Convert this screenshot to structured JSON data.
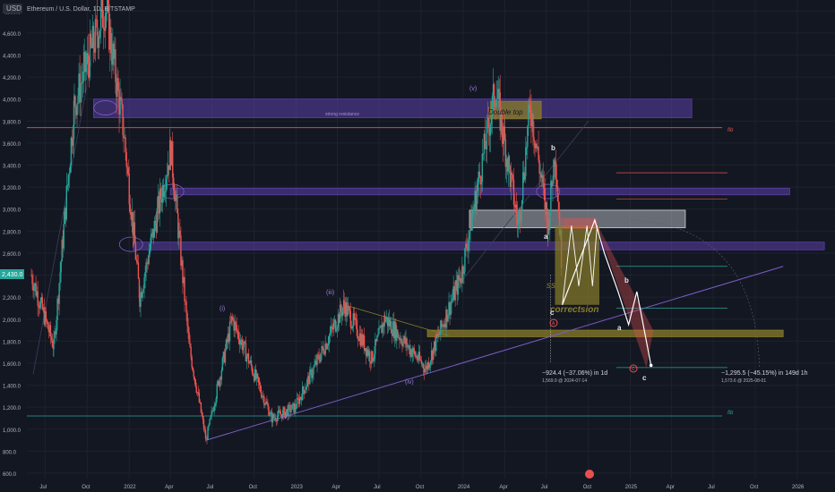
{
  "header": {
    "currency_badge": "USD",
    "title": "Ethereum / U.S. Dollar, 1D, BITSTAMP"
  },
  "price_badge": "2,430.0",
  "colors": {
    "background": "#131722",
    "zone_purple": "#5b3fa8",
    "zone_gray": "#d1d4dc",
    "zone_olive": "#8a7d2a",
    "fib_red": "#e8504f",
    "fib_teal": "#26a69a",
    "trend_purple": "#7b5cc6",
    "projection_white": "#ffffff",
    "up_candle": "#26a69a",
    "down_candle": "#ef5350"
  },
  "annotations": {
    "double_top": "Double top",
    "strong_resistance": "strong resistance",
    "correction": "correctsion",
    "swing_tag": "ss",
    "fib_top": "fib",
    "fib_bottom": "fib",
    "wave_v": "(v)",
    "wave_iii": "(iii)",
    "wave_i": "(i)",
    "wave_ii": "(ii)",
    "wave_iv": "(iv)",
    "label_a_top": "a",
    "label_b_top": "b",
    "label_c_left": "c",
    "label_b_right": "b",
    "label_a_right": "a",
    "label_c_right": "c",
    "circle_a": "A",
    "circle_c": "C",
    "measure_1_line1": "−924.4 (−37.06%) in 1d",
    "measure_1_line2": "1,569.9 @ 2024-07-14",
    "measure_2_line1": "−1,295.5 (−45.15%) in 149d 1h",
    "measure_2_line2": "1,573.6 @ 2025-08-01"
  },
  "chart_data": {
    "type": "candlestick",
    "title": "Ethereum / U.S. Dollar, 1D, BITSTAMP",
    "xlabel": "",
    "ylabel": "",
    "ylim": [
      600,
      4900
    ],
    "y_ticks": [
      "4,800.0",
      "4,600.0",
      "4,400.0",
      "4,200.0",
      "4,000.0",
      "3,800.0",
      "3,600.0",
      "3,400.0",
      "3,200.0",
      "3,000.0",
      "2,800.0",
      "2,600.0",
      "2,400.0",
      "2,200.0",
      "2,000.0",
      "1,800.0",
      "1,600.0",
      "1,400.0",
      "1,200.0",
      "1,000.0",
      "800.0",
      "600.0"
    ],
    "x_ticks": [
      "Jul",
      "Oct",
      "2022",
      "Apr",
      "Jul",
      "Oct",
      "2023",
      "Apr",
      "Jul",
      "Oct",
      "2024",
      "Apr",
      "Jul",
      "Oct",
      "2025",
      "Apr",
      "Jul",
      "Oct",
      "2026"
    ],
    "key_points": [
      {
        "date": "2021-06-01",
        "price": 2400
      },
      {
        "date": "2021-07-20",
        "price": 1750
      },
      {
        "date": "2021-09-03",
        "price": 3950
      },
      {
        "date": "2021-11-10",
        "price": 4850
      },
      {
        "date": "2021-12-20",
        "price": 3700
      },
      {
        "date": "2022-01-24",
        "price": 2200
      },
      {
        "date": "2022-04-02",
        "price": 3550
      },
      {
        "date": "2022-05-12",
        "price": 1750
      },
      {
        "date": "2022-06-18",
        "price": 900
      },
      {
        "date": "2022-08-14",
        "price": 2000
      },
      {
        "date": "2022-11-09",
        "price": 1100
      },
      {
        "date": "2022-12-30",
        "price": 1200
      },
      {
        "date": "2023-04-16",
        "price": 2130
      },
      {
        "date": "2023-06-15",
        "price": 1640
      },
      {
        "date": "2023-07-14",
        "price": 2010
      },
      {
        "date": "2023-10-12",
        "price": 1550
      },
      {
        "date": "2023-12-28",
        "price": 2400
      },
      {
        "date": "2024-03-12",
        "price": 4090
      },
      {
        "date": "2024-05-01",
        "price": 2850
      },
      {
        "date": "2024-05-27",
        "price": 3950
      },
      {
        "date": "2024-07-05",
        "price": 2850
      },
      {
        "date": "2024-07-20",
        "price": 3550
      },
      {
        "date": "2024-08-05",
        "price": 2430
      }
    ],
    "zones": [
      {
        "label": "strong resistance",
        "from": "2021-10-15",
        "to": "2025-05-15",
        "low": 3830,
        "high": 4000,
        "color": "purple"
      },
      {
        "label": "",
        "from": "2022-04-01",
        "to": "2025-12-15",
        "low": 3130,
        "high": 3190,
        "color": "purple"
      },
      {
        "label": "",
        "from": "2022-01-10",
        "to": "2026-03-01",
        "low": 2630,
        "high": 2700,
        "color": "purple"
      },
      {
        "label": "",
        "from": "2024-01-15",
        "to": "2025-05-01",
        "low": 2830,
        "high": 2990,
        "color": "gray"
      },
      {
        "label": "",
        "from": "2023-10-15",
        "to": "2025-12-01",
        "low": 1840,
        "high": 1900,
        "color": "olive"
      },
      {
        "label": "Double top",
        "from": "2024-03-01",
        "to": "2024-06-20",
        "low": 3820,
        "high": 3980,
        "color": "olive"
      }
    ],
    "fib_levels": [
      {
        "price": 3740,
        "label": "fib",
        "color": "red"
      },
      {
        "price": 1120,
        "label": "fib",
        "color": "teal"
      }
    ],
    "projection": [
      {
        "date": "2024-08-05",
        "price": 2130,
        "label": "c"
      },
      {
        "date": "2024-10-15",
        "price": 2900
      },
      {
        "date": "2024-11-05",
        "price": 2600
      },
      {
        "date": "2024-12-05",
        "price": 2250,
        "label": "b"
      },
      {
        "date": "2024-12-28",
        "price": 1950,
        "label": "a"
      },
      {
        "date": "2025-01-15",
        "price": 2250
      },
      {
        "date": "2025-02-15",
        "price": 1580,
        "label": "c"
      }
    ]
  }
}
